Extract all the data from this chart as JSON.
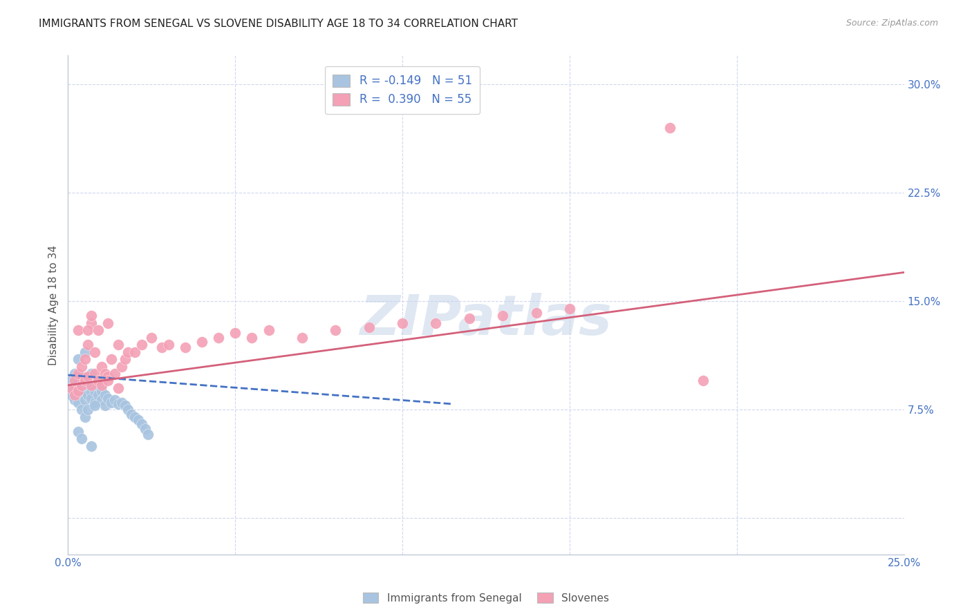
{
  "title": "IMMIGRANTS FROM SENEGAL VS SLOVENE DISABILITY AGE 18 TO 34 CORRELATION CHART",
  "source": "Source: ZipAtlas.com",
  "ylabel": "Disability Age 18 to 34",
  "xlim": [
    0.0,
    0.25
  ],
  "ylim": [
    -0.025,
    0.32
  ],
  "yticks": [
    0.0,
    0.075,
    0.15,
    0.225,
    0.3
  ],
  "yticklabels": [
    "",
    "7.5%",
    "15.0%",
    "22.5%",
    "30.0%"
  ],
  "watermark": "ZIPatlas",
  "legend_entry1_label": "R = -0.149   N = 51",
  "legend_entry2_label": "R =  0.390   N = 55",
  "blue_color": "#a8c4e0",
  "pink_color": "#f4a0b5",
  "blue_line_color": "#4472c4",
  "pink_line_color": "#d4607a",
  "text_color": "#4472c4",
  "grid_color": "#d0d8ee",
  "senegal_x": [
    0.001,
    0.001,
    0.001,
    0.002,
    0.002,
    0.002,
    0.002,
    0.003,
    0.003,
    0.003,
    0.003,
    0.003,
    0.004,
    0.004,
    0.004,
    0.004,
    0.005,
    0.005,
    0.005,
    0.006,
    0.006,
    0.007,
    0.007,
    0.007,
    0.008,
    0.008,
    0.009,
    0.009,
    0.01,
    0.01,
    0.011,
    0.011,
    0.012,
    0.013,
    0.014,
    0.015,
    0.016,
    0.017,
    0.018,
    0.019,
    0.02,
    0.021,
    0.022,
    0.023,
    0.024,
    0.005,
    0.006,
    0.008,
    0.003,
    0.004,
    0.007
  ],
  "senegal_y": [
    0.09,
    0.095,
    0.085,
    0.092,
    0.088,
    0.1,
    0.082,
    0.11,
    0.095,
    0.085,
    0.09,
    0.08,
    0.092,
    0.086,
    0.098,
    0.075,
    0.115,
    0.088,
    0.082,
    0.09,
    0.085,
    0.1,
    0.087,
    0.083,
    0.088,
    0.08,
    0.092,
    0.085,
    0.088,
    0.082,
    0.085,
    0.078,
    0.083,
    0.08,
    0.082,
    0.079,
    0.08,
    0.078,
    0.075,
    0.072,
    0.07,
    0.068,
    0.065,
    0.062,
    0.058,
    0.07,
    0.075,
    0.078,
    0.06,
    0.055,
    0.05
  ],
  "slovene_x": [
    0.001,
    0.002,
    0.002,
    0.003,
    0.003,
    0.004,
    0.004,
    0.005,
    0.005,
    0.006,
    0.006,
    0.007,
    0.007,
    0.008,
    0.008,
    0.009,
    0.01,
    0.01,
    0.011,
    0.012,
    0.013,
    0.014,
    0.015,
    0.016,
    0.017,
    0.018,
    0.02,
    0.022,
    0.025,
    0.028,
    0.03,
    0.035,
    0.04,
    0.045,
    0.05,
    0.055,
    0.06,
    0.07,
    0.08,
    0.09,
    0.1,
    0.11,
    0.12,
    0.13,
    0.14,
    0.15,
    0.003,
    0.006,
    0.009,
    0.012,
    0.18,
    0.007,
    0.012,
    0.015,
    0.19
  ],
  "slovene_y": [
    0.09,
    0.095,
    0.085,
    0.1,
    0.088,
    0.092,
    0.105,
    0.095,
    0.11,
    0.098,
    0.12,
    0.092,
    0.135,
    0.1,
    0.115,
    0.095,
    0.105,
    0.092,
    0.1,
    0.098,
    0.11,
    0.1,
    0.12,
    0.105,
    0.11,
    0.115,
    0.115,
    0.12,
    0.125,
    0.118,
    0.12,
    0.118,
    0.122,
    0.125,
    0.128,
    0.125,
    0.13,
    0.125,
    0.13,
    0.132,
    0.135,
    0.135,
    0.138,
    0.14,
    0.142,
    0.145,
    0.13,
    0.13,
    0.13,
    0.135,
    0.27,
    0.14,
    0.095,
    0.09,
    0.095
  ],
  "senegal_line_x": [
    0.0,
    0.115
  ],
  "senegal_line_y": [
    0.099,
    0.079
  ],
  "slovene_line_x": [
    0.0,
    0.25
  ],
  "slovene_line_y": [
    0.092,
    0.17
  ]
}
